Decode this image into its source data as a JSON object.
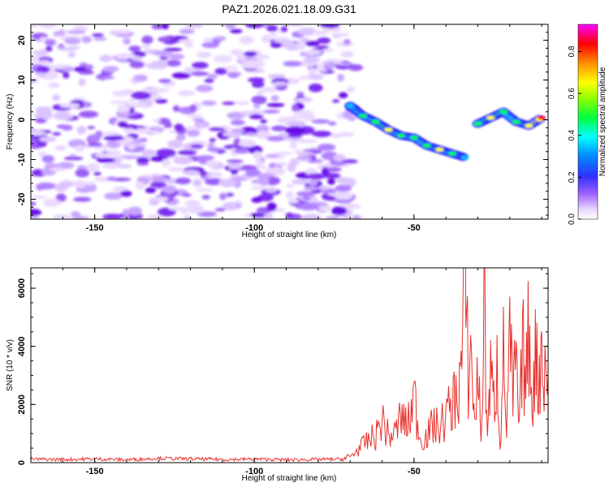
{
  "chart_data": [
    {
      "type": "heatmap",
      "title": "PAZ1.2026.021.18.09.G31",
      "xlabel": "Height of straight line (km)",
      "ylabel": "Frequency (Hz)",
      "xlim": [
        -170,
        -8
      ],
      "ylim": [
        -25,
        24
      ],
      "xticks": [
        -150,
        -100,
        -50
      ],
      "yticks": [
        -20,
        -10,
        0,
        10,
        20
      ],
      "colorbar": {
        "label": "Normalized spectral amplitude",
        "range": [
          0,
          0.93
        ],
        "ticks": [
          0.0,
          0.2,
          0.4,
          0.6,
          0.8
        ],
        "colors": [
          "#ffffff",
          "#c9a8ff",
          "#8a2be2",
          "#2a2aff",
          "#00ffff",
          "#00ff00",
          "#ffff00",
          "#ffa500",
          "#ff0000",
          "#ff00ff"
        ]
      },
      "noise_region_x": [
        -170,
        -70
      ],
      "signal_track": [
        {
          "x": -70,
          "y": 3.5,
          "v": 0.35
        },
        {
          "x": -66,
          "y": 1.0,
          "v": 0.45
        },
        {
          "x": -62,
          "y": -0.5,
          "v": 0.55
        },
        {
          "x": -58,
          "y": -2.5,
          "v": 0.65
        },
        {
          "x": -54,
          "y": -4.0,
          "v": 0.5
        },
        {
          "x": -50,
          "y": -4.5,
          "v": 0.45
        },
        {
          "x": -46,
          "y": -6.5,
          "v": 0.55
        },
        {
          "x": -42,
          "y": -7.5,
          "v": 0.6
        },
        {
          "x": -38,
          "y": -8.5,
          "v": 0.45
        },
        {
          "x": -34,
          "y": -9.5,
          "v": 0.3
        },
        {
          "x": -30,
          "y": -1.0,
          "v": 0.45
        },
        {
          "x": -26,
          "y": 0.5,
          "v": 0.6
        },
        {
          "x": -22,
          "y": 2.0,
          "v": 0.55
        },
        {
          "x": -18,
          "y": -0.5,
          "v": 0.45
        },
        {
          "x": -14,
          "y": -1.5,
          "v": 0.6
        },
        {
          "x": -10,
          "y": 0.5,
          "v": 0.85
        }
      ]
    },
    {
      "type": "line",
      "xlabel": "Height of straight line (km)",
      "ylabel": "SNR (10 * v/v)",
      "xlim": [
        -170,
        -8
      ],
      "ylim": [
        0,
        6700
      ],
      "xticks": [
        -150,
        -100,
        -50
      ],
      "yticks": [
        0,
        2000,
        4000,
        6000
      ],
      "series": [
        {
          "name": "SNR",
          "color": "#e8312d",
          "x": [
            -170,
            -160,
            -150,
            -140,
            -130,
            -120,
            -110,
            -100,
            -90,
            -80,
            -72,
            -70,
            -68,
            -66,
            -64,
            -62,
            -60,
            -58,
            -56,
            -54,
            -52,
            -50,
            -48,
            -46,
            -44,
            -42,
            -40,
            -38,
            -36,
            -35,
            -34,
            -33,
            -32,
            -31,
            -30,
            -29,
            -28,
            -27,
            -26,
            -25,
            -24,
            -23,
            -22,
            -21,
            -20,
            -19,
            -18,
            -17,
            -16,
            -15,
            -14,
            -13,
            -12,
            -11,
            -10,
            -9,
            -8
          ],
          "values": [
            120,
            110,
            130,
            100,
            150,
            130,
            110,
            120,
            100,
            110,
            120,
            200,
            400,
            600,
            800,
            900,
            1500,
            900,
            1000,
            1600,
            1200,
            2300,
            800,
            900,
            1300,
            1200,
            1600,
            2000,
            2600,
            3500,
            6700,
            3000,
            3800,
            1200,
            3300,
            800,
            5600,
            1000,
            3000,
            2000,
            3300,
            700,
            3600,
            1200,
            4000,
            2300,
            3400,
            1000,
            4100,
            2600,
            4600,
            2100,
            3700,
            2800,
            4100,
            2900,
            3000
          ]
        }
      ]
    }
  ]
}
